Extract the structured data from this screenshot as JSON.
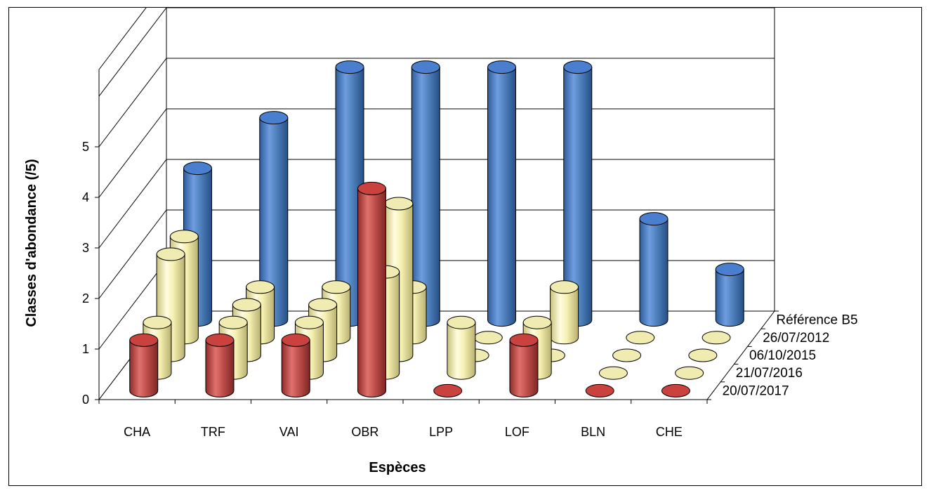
{
  "chart_data": {
    "type": "bar",
    "style": "3d-cylinder",
    "title": "",
    "xlabel": "Espèces",
    "ylabel": "Classes d'abondance  (/5)",
    "ylim": [
      0,
      5
    ],
    "yticks": [
      "0",
      "1",
      "2",
      "3",
      "4",
      "5"
    ],
    "grid": true,
    "categories": [
      "CHA",
      "TRF",
      "VAI",
      "OBR",
      "LPP",
      "LOF",
      "BLN",
      "CHE"
    ],
    "series": [
      {
        "name": "20/07/2017",
        "color": "#c0504d",
        "values": [
          1,
          1,
          1,
          4,
          0,
          1,
          0,
          0
        ]
      },
      {
        "name": "21/07/2016",
        "color": "#f5f0b0",
        "values": [
          1,
          1,
          1,
          2,
          1,
          1,
          0,
          0
        ]
      },
      {
        "name": "06/10/2015",
        "color": "#f5f0b0",
        "values": [
          2,
          1,
          1,
          3,
          0,
          0,
          0,
          0
        ]
      },
      {
        "name": "26/07/2012",
        "color": "#f5f0b0",
        "values": [
          2,
          1,
          1,
          1,
          0,
          1,
          0,
          0
        ]
      },
      {
        "name": "Référence B5",
        "color": "#4f81bd",
        "values": [
          3,
          4,
          5,
          5,
          5,
          5,
          2,
          1
        ]
      }
    ]
  }
}
